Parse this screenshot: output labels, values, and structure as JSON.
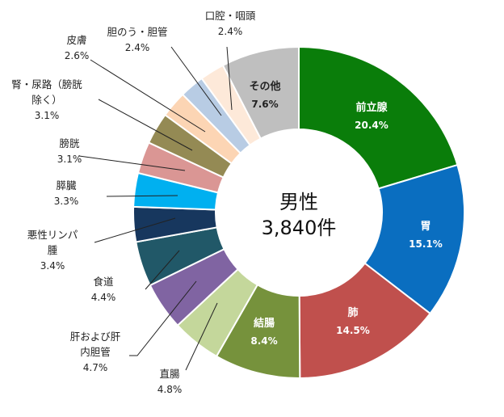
{
  "chart_data": {
    "type": "pie",
    "donut": true,
    "center_label": [
      "男性",
      "3,840件"
    ],
    "slices": [
      {
        "label": "前立腺",
        "value": 20.4,
        "pct_text": "20.4%",
        "color": "#0a7d0a"
      },
      {
        "label": "胃",
        "value": 15.1,
        "pct_text": "15.1%",
        "color": "#0a6ec0"
      },
      {
        "label": "肺",
        "value": 14.5,
        "pct_text": "14.5%",
        "color": "#c0504d"
      },
      {
        "label": "結腸",
        "value": 8.4,
        "pct_text": "8.4%",
        "color": "#76923c"
      },
      {
        "label": "直腸",
        "value": 4.8,
        "pct_text": "4.8%",
        "color": "#c4d79b"
      },
      {
        "label": "肝および肝内胆管",
        "value": 4.7,
        "pct_text": "4.7%",
        "color": "#8064a2"
      },
      {
        "label": "食道",
        "value": 4.4,
        "pct_text": "4.4%",
        "color": "#215868"
      },
      {
        "label": "悪性リンパ腫",
        "value": 3.4,
        "pct_text": "3.4%",
        "color": "#17375e"
      },
      {
        "label": "膵臓",
        "value": 3.3,
        "pct_text": "3.3%",
        "color": "#00b0f0"
      },
      {
        "label": "膀胱",
        "value": 3.1,
        "pct_text": "3.1%",
        "color": "#da9694"
      },
      {
        "label": "腎・尿路（膀胱除く）",
        "value": 3.1,
        "pct_text": "3.1%",
        "color": "#948a54"
      },
      {
        "label": "皮膚",
        "value": 2.6,
        "pct_text": "2.6%",
        "color": "#fcd5b4"
      },
      {
        "label": "胆のう・胆管",
        "value": 2.4,
        "pct_text": "2.4%",
        "color": "#b8cce4"
      },
      {
        "label": "口腔・咽頭",
        "value": 2.4,
        "pct_text": "2.4%",
        "color": "#fde9d9"
      },
      {
        "label": "その他",
        "value": 7.6,
        "pct_text": "7.6%",
        "color": "#bfbfbf"
      }
    ]
  }
}
